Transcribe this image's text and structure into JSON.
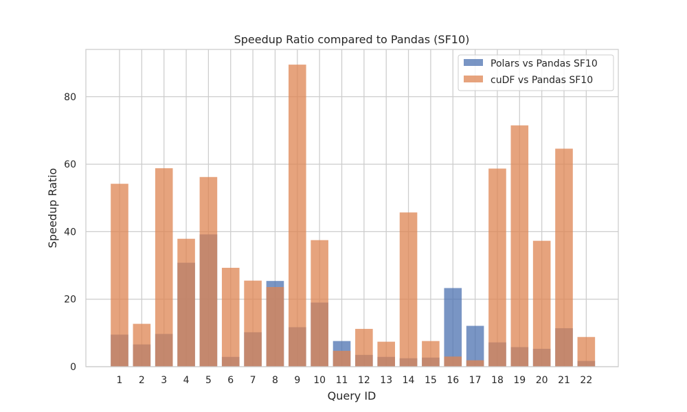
{
  "chart_data": {
    "type": "bar",
    "title": "Speedup Ratio compared to Pandas (SF10)",
    "xlabel": "Query ID",
    "ylabel": "Speedup Ratio",
    "categories": [
      "1",
      "2",
      "3",
      "4",
      "5",
      "6",
      "7",
      "8",
      "9",
      "10",
      "11",
      "12",
      "13",
      "14",
      "15",
      "16",
      "17",
      "18",
      "19",
      "20",
      "21",
      "22"
    ],
    "ylim": [
      0,
      94
    ],
    "yticks": [
      0,
      20,
      40,
      60,
      80
    ],
    "grid": true,
    "legend_position": "top-right",
    "series": [
      {
        "name": "Polars vs Pandas SF10",
        "color": "#4c72b0",
        "values": [
          9.5,
          6.6,
          9.7,
          30.8,
          39.2,
          2.9,
          10.2,
          25.4,
          11.7,
          19.0,
          7.6,
          3.5,
          2.9,
          2.5,
          2.7,
          23.3,
          12.1,
          7.2,
          5.8,
          5.3,
          11.4,
          1.7
        ]
      },
      {
        "name": "cuDF vs Pandas SF10",
        "color": "#dd8452",
        "values": [
          54.2,
          12.7,
          58.8,
          37.9,
          56.2,
          29.3,
          25.5,
          23.6,
          89.5,
          37.5,
          4.7,
          11.2,
          7.4,
          45.7,
          7.6,
          3.0,
          1.9,
          58.7,
          71.5,
          37.3,
          64.6,
          8.8
        ]
      }
    ]
  }
}
